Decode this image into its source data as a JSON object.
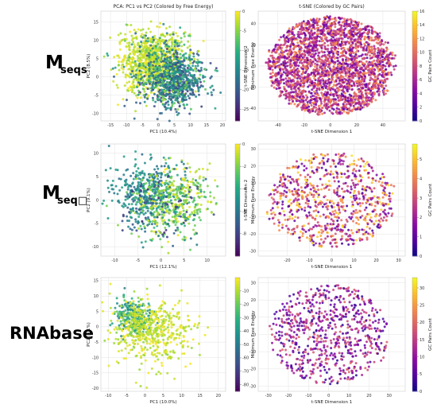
{
  "row_labels": [
    {
      "main": "M",
      "sub": "seqs"
    },
    {
      "main": "M",
      "sub": "seq□"
    },
    {
      "main": "RNAbase",
      "sub": ""
    }
  ],
  "chart_data": [
    {
      "type": "scatter",
      "row": 0,
      "col": 0,
      "title": "PCA: PC1 vs PC2 (Colored by Free Energy)",
      "xlabel": "PC1 (10.4%)",
      "ylabel": "PC2 (8.5%)",
      "xlim": [
        -18,
        21
      ],
      "ylim": [
        -12,
        18
      ],
      "xticks": [
        -15,
        -10,
        -5,
        0,
        5,
        10,
        15,
        20
      ],
      "yticks": [
        -10,
        -5,
        0,
        5,
        10,
        15
      ],
      "colorbar": {
        "label": "Minimum Free Energy",
        "cmap": "viridis",
        "range": [
          -28,
          0
        ],
        "ticks": [
          0,
          -5,
          -10,
          -15,
          -20,
          -25
        ]
      },
      "grid": true,
      "clusters": [
        {
          "cx": -2,
          "cy": 4,
          "sx": 5,
          "sy": 4,
          "n": 900,
          "c": [
            0.85,
            1.0
          ]
        },
        {
          "cx": 5,
          "cy": -1,
          "sx": 4.5,
          "sy": 3.5,
          "n": 600,
          "c": [
            0.15,
            0.6
          ]
        },
        {
          "cx": 2,
          "cy": 2,
          "sx": 6,
          "sy": 5,
          "n": 350,
          "c": [
            0.3,
            0.9
          ]
        }
      ]
    },
    {
      "type": "scatter",
      "row": 0,
      "col": 1,
      "title": "t-SNE (Colored by GC Pairs)",
      "xlabel": "t-SNE Dimension 1",
      "ylabel": "t-SNE Dimension 2",
      "xlim": [
        -55,
        57
      ],
      "ylim": [
        -52,
        52
      ],
      "xticks": [
        -40,
        -20,
        0,
        20,
        40
      ],
      "yticks": [
        -40,
        -20,
        0,
        20,
        40
      ],
      "colorbar": {
        "label": "GC Pairs Count",
        "cmap": "plasma",
        "range": [
          0,
          16
        ],
        "ticks": [
          0,
          2,
          4,
          6,
          8,
          10,
          12,
          14,
          16
        ]
      },
      "grid": true,
      "clusters": [
        {
          "cx": 0,
          "cy": 0,
          "r": 47,
          "n": 2600,
          "c": [
            0.15,
            0.75
          ],
          "disk": true
        }
      ]
    },
    {
      "type": "scatter",
      "row": 1,
      "col": 0,
      "title": "",
      "xlabel": "PC1 (12.1%)",
      "ylabel": "PC2 (9.1%)",
      "xlim": [
        -13,
        14
      ],
      "ylim": [
        -12,
        12
      ],
      "xticks": [
        -10,
        -5,
        0,
        5,
        10
      ],
      "yticks": [
        -10,
        -5,
        0,
        5,
        10
      ],
      "colorbar": {
        "label": "Minimum Free Energy",
        "cmap": "viridis",
        "range": [
          -10,
          0
        ],
        "ticks": [
          0,
          -2,
          -4,
          -6,
          -8
        ]
      },
      "grid": true,
      "clusters": [
        {
          "cx": -3,
          "cy": 2,
          "sx": 3.5,
          "sy": 3,
          "n": 350,
          "c": [
            0.35,
            0.6
          ]
        },
        {
          "cx": 3,
          "cy": 0,
          "sx": 4,
          "sy": 3.5,
          "n": 350,
          "c": [
            0.7,
            1.0
          ]
        },
        {
          "cx": 0,
          "cy": -2,
          "sx": 4,
          "sy": 4,
          "n": 250,
          "c": [
            0.1,
            0.9
          ]
        }
      ]
    },
    {
      "type": "scatter",
      "row": 1,
      "col": 1,
      "title": "",
      "xlabel": "t-SNE Dimension 1",
      "ylabel": "t-SNE Dimension 2",
      "xlim": [
        -33,
        33
      ],
      "ylim": [
        -33,
        33
      ],
      "xticks": [
        -20,
        -10,
        0,
        10,
        20,
        30
      ],
      "yticks": [
        -30,
        -20,
        -10,
        0,
        10,
        20,
        30
      ],
      "colorbar": {
        "label": "GC Pairs Count",
        "cmap": "plasma",
        "range": [
          0,
          5.8
        ],
        "ticks": [
          0,
          1,
          2,
          3,
          4,
          5
        ]
      },
      "grid": true,
      "clusters": [
        {
          "cx": 0,
          "cy": 0,
          "r": 28,
          "n": 800,
          "c": [
            0.1,
            0.95
          ],
          "disk": true
        }
      ]
    },
    {
      "type": "scatter",
      "row": 2,
      "col": 0,
      "title": "",
      "xlabel": "PC1 (10.0%)",
      "ylabel": "PC2 (8.1%)",
      "xlim": [
        -12,
        22
      ],
      "ylim": [
        -21,
        16
      ],
      "xticks": [
        -10,
        -5,
        0,
        5,
        10,
        15,
        20
      ],
      "yticks": [
        -20,
        -15,
        -10,
        -5,
        0,
        5,
        10,
        15
      ],
      "colorbar": {
        "label": "Minimum Free Energy",
        "cmap": "viridis",
        "range": [
          -85,
          0
        ],
        "ticks": [
          -10,
          -20,
          -30,
          -40,
          -50,
          -60,
          -70,
          -80
        ]
      },
      "grid": true,
      "clusters": [
        {
          "cx": -3,
          "cy": 3,
          "sx": 2.5,
          "sy": 3,
          "n": 250,
          "c": [
            0.4,
            0.75
          ]
        },
        {
          "cx": 0,
          "cy": 0,
          "sx": 4,
          "sy": 4,
          "n": 300,
          "c": [
            0.8,
            1.0
          ]
        },
        {
          "cx": 3,
          "cy": -3,
          "sx": 6,
          "sy": 6,
          "n": 250,
          "c": [
            0.85,
            1.0
          ]
        }
      ]
    },
    {
      "type": "scatter",
      "row": 2,
      "col": 1,
      "title": "",
      "xlabel": "t-SNE Dimension 1",
      "ylabel": "",
      "xlim": [
        -35,
        38
      ],
      "ylim": [
        -33,
        33
      ],
      "xticks": [
        -30,
        -20,
        -10,
        0,
        10,
        20,
        30
      ],
      "yticks": [
        -30,
        -20,
        -10,
        0,
        10,
        20,
        30
      ],
      "colorbar": {
        "label": "GC Pairs Count",
        "cmap": "plasma",
        "range": [
          0,
          33
        ],
        "ticks": [
          0,
          5,
          10,
          15,
          20,
          25,
          30
        ]
      },
      "grid": true,
      "clusters": [
        {
          "cx": 0,
          "cy": 0,
          "r": 29,
          "n": 700,
          "c": [
            0.05,
            0.6
          ],
          "disk": true
        }
      ]
    }
  ]
}
